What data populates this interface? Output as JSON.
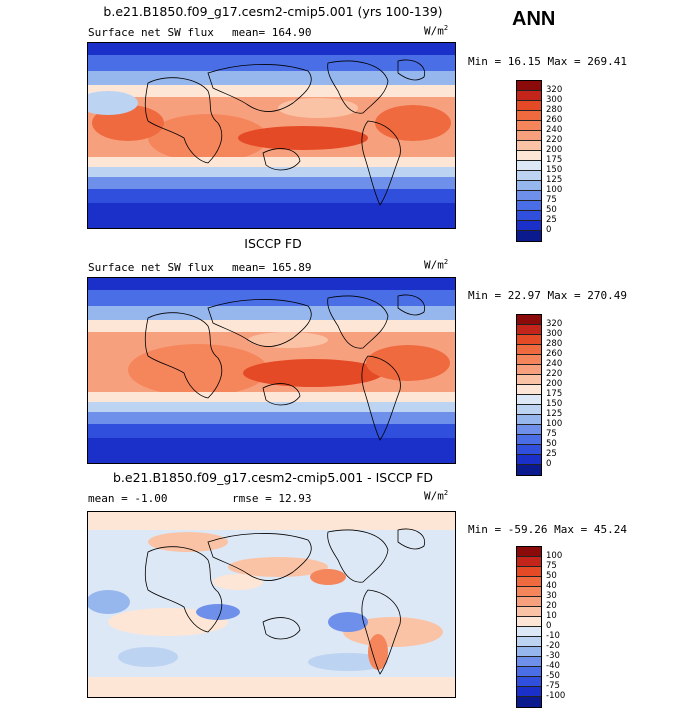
{
  "season": "ANN",
  "panels": [
    {
      "title": "b.e21.B1850.f09_g17.cesm2-cmip5.001 (yrs 100-139)",
      "left": "Surface net SW flux",
      "right": "mean= 164.90",
      "units": "W/m",
      "units_exp": "2",
      "minmax": "Min =  16.15 Max = 269.41",
      "levels": [
        "320",
        "300",
        "280",
        "260",
        "240",
        "220",
        "200",
        "175",
        "150",
        "125",
        "100",
        "75",
        "50",
        "25",
        "0"
      ],
      "colors": [
        "#8b0a0a",
        "#c4251a",
        "#e54a26",
        "#ef6a3e",
        "#f5865c",
        "#f7a07e",
        "#fbc3a6",
        "#fde6d6",
        "#dde8f6",
        "#bcd3f2",
        "#96b6ee",
        "#6e90ea",
        "#4a6ee6",
        "#2f4fdc",
        "#1a30c8",
        "#0b1a8c"
      ]
    },
    {
      "title": "ISCCP FD",
      "left": "Surface net SW flux",
      "right": "mean= 165.89",
      "units": "W/m",
      "units_exp": "2",
      "minmax": "Min =  22.97 Max = 270.49",
      "levels": [
        "320",
        "300",
        "280",
        "260",
        "240",
        "220",
        "200",
        "175",
        "150",
        "125",
        "100",
        "75",
        "50",
        "25",
        "0"
      ],
      "colors": [
        "#8b0a0a",
        "#c4251a",
        "#e54a26",
        "#ef6a3e",
        "#f5865c",
        "#f7a07e",
        "#fbc3a6",
        "#fde6d6",
        "#dde8f6",
        "#bcd3f2",
        "#96b6ee",
        "#6e90ea",
        "#4a6ee6",
        "#2f4fdc",
        "#1a30c8",
        "#0b1a8c"
      ]
    },
    {
      "title": "b.e21.B1850.f09_g17.cesm2-cmip5.001 - ISCCP FD",
      "left": "mean =  -1.00",
      "right": "rmse =  12.93",
      "units": "W/m",
      "units_exp": "2",
      "minmax": "Min = -59.26 Max =  45.24",
      "levels": [
        "100",
        "75",
        "50",
        "40",
        "30",
        "20",
        "10",
        "0",
        "-10",
        "-20",
        "-30",
        "-40",
        "-50",
        "-75",
        "-100"
      ],
      "colors": [
        "#8b0a0a",
        "#c4251a",
        "#e54a26",
        "#ef6a3e",
        "#f5865c",
        "#f7a07e",
        "#fbc3a6",
        "#fde6d6",
        "#dde8f6",
        "#bcd3f2",
        "#96b6ee",
        "#6e90ea",
        "#4a6ee6",
        "#2f4fdc",
        "#1a30c8",
        "#0b1a8c"
      ]
    }
  ]
}
